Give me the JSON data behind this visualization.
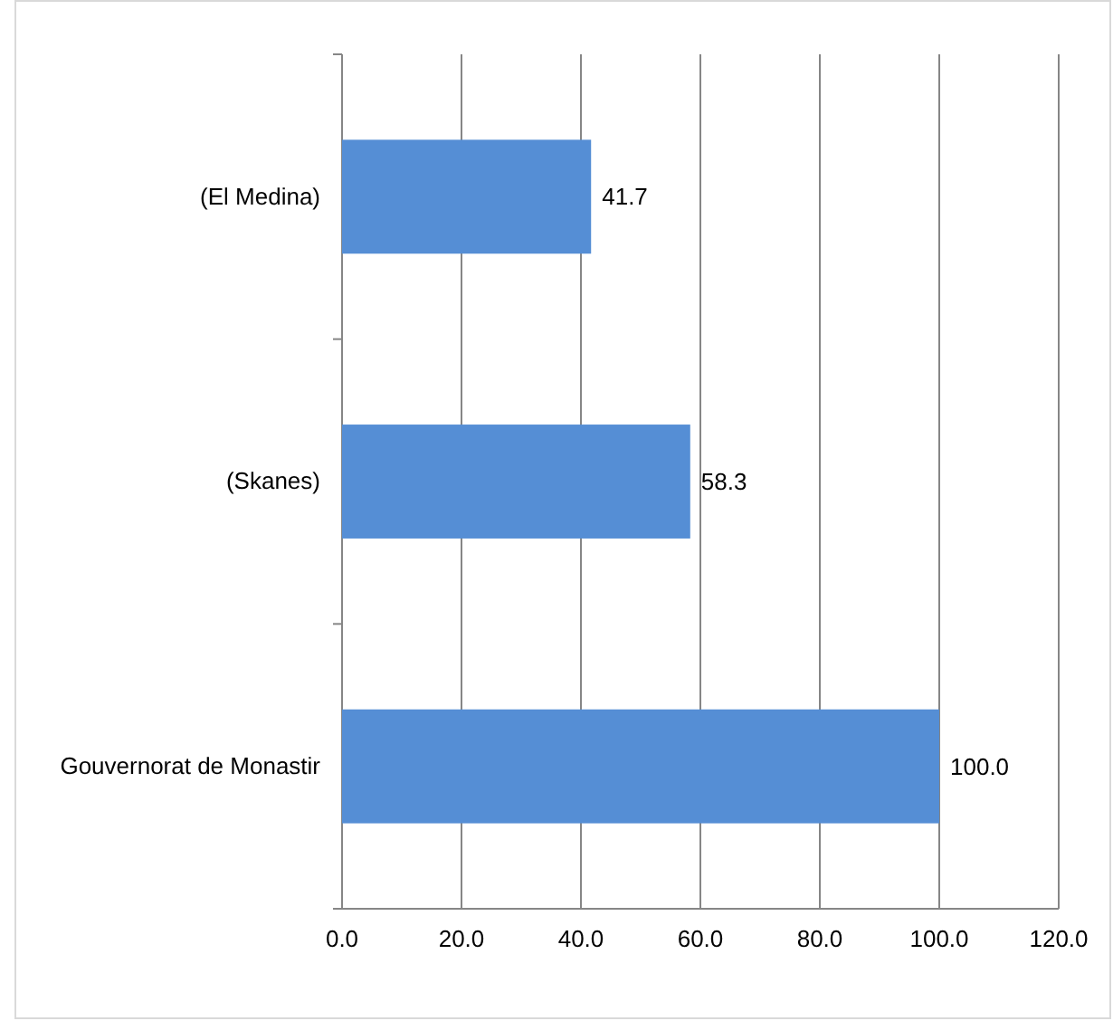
{
  "chart_data": {
    "type": "bar",
    "orientation": "horizontal",
    "categories": [
      "(El Medina)",
      "(Skanes)",
      "Gouvernorat de Monastir"
    ],
    "values": [
      41.7,
      58.3,
      100.0
    ],
    "color": "#558ed5",
    "value_labels": [
      "41.7",
      "58.3",
      "100.0"
    ],
    "xlim": [
      0,
      120
    ],
    "xticks": [
      {
        "value": 0,
        "label": "0.0"
      },
      {
        "value": 20,
        "label": "20.0"
      },
      {
        "value": 40,
        "label": "40.0"
      },
      {
        "value": 60,
        "label": "60.0"
      },
      {
        "value": 80,
        "label": "80.0"
      },
      {
        "value": 100,
        "label": "100.0"
      },
      {
        "value": 120,
        "label": "120.0"
      }
    ],
    "grid": "x"
  }
}
